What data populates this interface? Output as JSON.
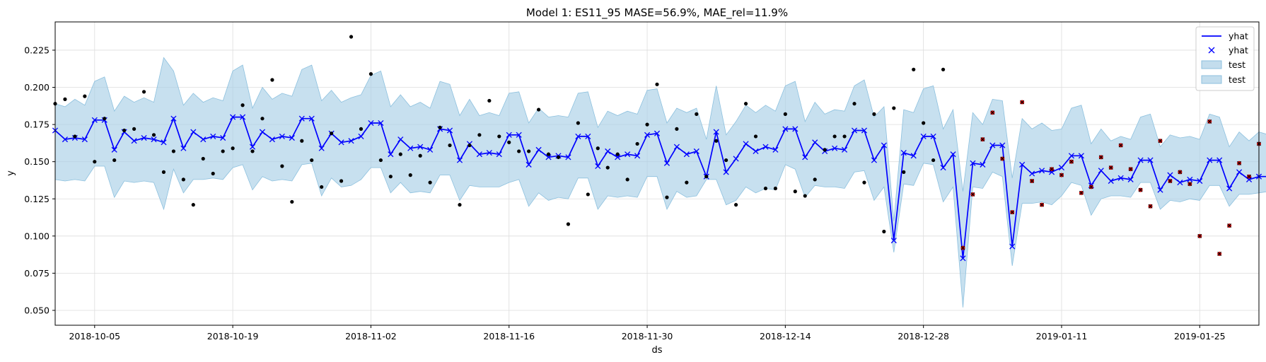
{
  "chart_data": {
    "type": "line",
    "title": "Model 1: ES11_95 MASE=56.9%, MAE_rel=11.9%",
    "xlabel": "ds",
    "ylabel": "y",
    "x_start": "2018-10-01",
    "x_end": "2019-01-31",
    "ylim": [
      0.04,
      0.244
    ],
    "grid": true,
    "legend_position": "top-right",
    "x_ticks": [
      "2018-10-05",
      "2018-10-19",
      "2018-11-02",
      "2018-11-16",
      "2018-11-30",
      "2018-12-14",
      "2018-12-28",
      "2019-01-11",
      "2019-01-25"
    ],
    "y_ticks": [
      0.05,
      0.075,
      0.1,
      0.125,
      0.15,
      0.175,
      0.2,
      0.225
    ],
    "y_tick_labels": [
      "0.050",
      "0.075",
      "0.100",
      "0.125",
      "0.150",
      "0.175",
      "0.200",
      "0.225"
    ],
    "legend": [
      {
        "label": "yhat",
        "kind": "line"
      },
      {
        "label": "yhat",
        "kind": "marker"
      },
      {
        "label": "test",
        "kind": "band"
      },
      {
        "label": "test",
        "kind": "band"
      }
    ],
    "colors": {
      "yhat": "#0000ff",
      "band_fill": "#a9cfe6",
      "band_edge": "#8cc0de",
      "actual": "#000000",
      "test": "#cc0000",
      "grid": "#dddddd"
    },
    "yhat": [
      0.171,
      0.165,
      0.166,
      0.165,
      0.178,
      0.178,
      0.158,
      0.17,
      0.164,
      0.166,
      0.165,
      0.163,
      0.179,
      0.159,
      0.17,
      0.165,
      0.167,
      0.166,
      0.18,
      0.18,
      0.16,
      0.17,
      0.165,
      0.167,
      0.166,
      0.179,
      0.179,
      0.159,
      0.169,
      0.163,
      0.164,
      0.167,
      0.176,
      0.176,
      0.155,
      0.165,
      0.159,
      0.16,
      0.158,
      0.172,
      0.171,
      0.151,
      0.162,
      0.155,
      0.156,
      0.155,
      0.168,
      0.168,
      0.148,
      0.158,
      0.153,
      0.154,
      0.153,
      0.167,
      0.167,
      0.147,
      0.157,
      0.153,
      0.155,
      0.154,
      0.168,
      0.169,
      0.149,
      0.16,
      0.155,
      0.157,
      0.14,
      0.17,
      0.143,
      0.152,
      0.162,
      0.157,
      0.16,
      0.158,
      0.172,
      0.172,
      0.153,
      0.163,
      0.157,
      0.159,
      0.158,
      0.171,
      0.171,
      0.151,
      0.161,
      0.097,
      0.156,
      0.154,
      0.167,
      0.167,
      0.146,
      0.155,
      0.085,
      0.149,
      0.148,
      0.161,
      0.161,
      0.093,
      0.148,
      0.142,
      0.144,
      0.143,
      0.146,
      0.154,
      0.154,
      0.134,
      0.144,
      0.137,
      0.139,
      0.138,
      0.151,
      0.151,
      0.131,
      0.141,
      0.136,
      0.138,
      0.137,
      0.151,
      0.151,
      0.132,
      0.143,
      0.138,
      0.14,
      0.14
    ],
    "yhat_lower": [
      0.138,
      0.137,
      0.138,
      0.137,
      0.147,
      0.147,
      0.126,
      0.137,
      0.136,
      0.137,
      0.136,
      0.118,
      0.145,
      0.129,
      0.138,
      0.138,
      0.139,
      0.138,
      0.146,
      0.148,
      0.131,
      0.14,
      0.137,
      0.138,
      0.137,
      0.148,
      0.149,
      0.127,
      0.139,
      0.133,
      0.134,
      0.138,
      0.146,
      0.146,
      0.129,
      0.136,
      0.129,
      0.13,
      0.129,
      0.141,
      0.141,
      0.124,
      0.134,
      0.133,
      0.133,
      0.133,
      0.136,
      0.138,
      0.12,
      0.129,
      0.124,
      0.126,
      0.125,
      0.139,
      0.139,
      0.118,
      0.127,
      0.126,
      0.127,
      0.126,
      0.14,
      0.14,
      0.118,
      0.13,
      0.126,
      0.127,
      0.138,
      0.138,
      0.121,
      0.124,
      0.133,
      0.129,
      0.132,
      0.131,
      0.148,
      0.145,
      0.126,
      0.134,
      0.133,
      0.133,
      0.132,
      0.143,
      0.144,
      0.124,
      0.133,
      0.089,
      0.135,
      0.134,
      0.149,
      0.148,
      0.123,
      0.133,
      0.052,
      0.133,
      0.132,
      0.143,
      0.14,
      0.08,
      0.122,
      0.122,
      0.123,
      0.121,
      0.127,
      0.136,
      0.134,
      0.114,
      0.125,
      0.127,
      0.127,
      0.126,
      0.136,
      0.136,
      0.118,
      0.124,
      0.123,
      0.125,
      0.124,
      0.134,
      0.134,
      0.12,
      0.128,
      0.128,
      0.129,
      0.13
    ],
    "yhat_upper": [
      0.189,
      0.187,
      0.192,
      0.188,
      0.204,
      0.207,
      0.184,
      0.194,
      0.19,
      0.193,
      0.19,
      0.22,
      0.211,
      0.188,
      0.196,
      0.19,
      0.193,
      0.191,
      0.211,
      0.215,
      0.186,
      0.2,
      0.192,
      0.196,
      0.194,
      0.212,
      0.215,
      0.191,
      0.198,
      0.19,
      0.193,
      0.195,
      0.208,
      0.211,
      0.187,
      0.195,
      0.187,
      0.19,
      0.186,
      0.204,
      0.202,
      0.181,
      0.192,
      0.181,
      0.183,
      0.181,
      0.196,
      0.197,
      0.176,
      0.186,
      0.18,
      0.181,
      0.18,
      0.196,
      0.197,
      0.173,
      0.184,
      0.181,
      0.184,
      0.182,
      0.198,
      0.199,
      0.176,
      0.186,
      0.183,
      0.186,
      0.165,
      0.201,
      0.168,
      0.177,
      0.188,
      0.183,
      0.188,
      0.184,
      0.201,
      0.204,
      0.177,
      0.19,
      0.182,
      0.185,
      0.184,
      0.201,
      0.205,
      0.18,
      0.187,
      0.11,
      0.185,
      0.183,
      0.199,
      0.201,
      0.172,
      0.185,
      0.13,
      0.183,
      0.175,
      0.192,
      0.191,
      0.139,
      0.179,
      0.172,
      0.176,
      0.171,
      0.172,
      0.186,
      0.188,
      0.162,
      0.172,
      0.164,
      0.167,
      0.165,
      0.18,
      0.182,
      0.16,
      0.168,
      0.166,
      0.167,
      0.165,
      0.182,
      0.18,
      0.16,
      0.17,
      0.164,
      0.17,
      0.168
    ],
    "actual": [
      {
        "x": "2018-10-01",
        "y": 0.189
      },
      {
        "x": "2018-10-02",
        "y": 0.192
      },
      {
        "x": "2018-10-03",
        "y": 0.167
      },
      {
        "x": "2018-10-04",
        "y": 0.194
      },
      {
        "x": "2018-10-05",
        "y": 0.15
      },
      {
        "x": "2018-10-06",
        "y": 0.179
      },
      {
        "x": "2018-10-07",
        "y": 0.151
      },
      {
        "x": "2018-10-08",
        "y": 0.171
      },
      {
        "x": "2018-10-09",
        "y": 0.172
      },
      {
        "x": "2018-10-10",
        "y": 0.197
      },
      {
        "x": "2018-10-11",
        "y": 0.168
      },
      {
        "x": "2018-10-12",
        "y": 0.143
      },
      {
        "x": "2018-10-13",
        "y": 0.157
      },
      {
        "x": "2018-10-14",
        "y": 0.138
      },
      {
        "x": "2018-10-15",
        "y": 0.121
      },
      {
        "x": "2018-10-16",
        "y": 0.152
      },
      {
        "x": "2018-10-17",
        "y": 0.142
      },
      {
        "x": "2018-10-18",
        "y": 0.157
      },
      {
        "x": "2018-10-19",
        "y": 0.159
      },
      {
        "x": "2018-10-20",
        "y": 0.188
      },
      {
        "x": "2018-10-21",
        "y": 0.157
      },
      {
        "x": "2018-10-22",
        "y": 0.179
      },
      {
        "x": "2018-10-23",
        "y": 0.205
      },
      {
        "x": "2018-10-24",
        "y": 0.147
      },
      {
        "x": "2018-10-25",
        "y": 0.123
      },
      {
        "x": "2018-10-26",
        "y": 0.164
      },
      {
        "x": "2018-10-27",
        "y": 0.151
      },
      {
        "x": "2018-10-28",
        "y": 0.133
      },
      {
        "x": "2018-10-29",
        "y": 0.169
      },
      {
        "x": "2018-10-30",
        "y": 0.137
      },
      {
        "x": "2018-10-31",
        "y": 0.234
      },
      {
        "x": "2018-11-01",
        "y": 0.172
      },
      {
        "x": "2018-11-02",
        "y": 0.209
      },
      {
        "x": "2018-11-03",
        "y": 0.151
      },
      {
        "x": "2018-11-04",
        "y": 0.14
      },
      {
        "x": "2018-11-05",
        "y": 0.155
      },
      {
        "x": "2018-11-06",
        "y": 0.141
      },
      {
        "x": "2018-11-07",
        "y": 0.154
      },
      {
        "x": "2018-11-08",
        "y": 0.136
      },
      {
        "x": "2018-11-09",
        "y": 0.173
      },
      {
        "x": "2018-11-10",
        "y": 0.161
      },
      {
        "x": "2018-11-11",
        "y": 0.121
      },
      {
        "x": "2018-11-12",
        "y": 0.161
      },
      {
        "x": "2018-11-13",
        "y": 0.168
      },
      {
        "x": "2018-11-14",
        "y": 0.191
      },
      {
        "x": "2018-11-15",
        "y": 0.167
      },
      {
        "x": "2018-11-16",
        "y": 0.163
      },
      {
        "x": "2018-11-17",
        "y": 0.157
      },
      {
        "x": "2018-11-18",
        "y": 0.157
      },
      {
        "x": "2018-11-19",
        "y": 0.185
      },
      {
        "x": "2018-11-20",
        "y": 0.155
      },
      {
        "x": "2018-11-21",
        "y": 0.153
      },
      {
        "x": "2018-11-22",
        "y": 0.108
      },
      {
        "x": "2018-11-23",
        "y": 0.176
      },
      {
        "x": "2018-11-24",
        "y": 0.128
      },
      {
        "x": "2018-11-25",
        "y": 0.159
      },
      {
        "x": "2018-11-26",
        "y": 0.146
      },
      {
        "x": "2018-11-27",
        "y": 0.155
      },
      {
        "x": "2018-11-28",
        "y": 0.138
      },
      {
        "x": "2018-11-29",
        "y": 0.162
      },
      {
        "x": "2018-11-30",
        "y": 0.175
      },
      {
        "x": "2018-12-01",
        "y": 0.202
      },
      {
        "x": "2018-12-02",
        "y": 0.126
      },
      {
        "x": "2018-12-03",
        "y": 0.172
      },
      {
        "x": "2018-12-04",
        "y": 0.136
      },
      {
        "x": "2018-12-05",
        "y": 0.182
      },
      {
        "x": "2018-12-06",
        "y": 0.14
      },
      {
        "x": "2018-12-07",
        "y": 0.164
      },
      {
        "x": "2018-12-08",
        "y": 0.151
      },
      {
        "x": "2018-12-09",
        "y": 0.121
      },
      {
        "x": "2018-12-10",
        "y": 0.189
      },
      {
        "x": "2018-12-11",
        "y": 0.167
      },
      {
        "x": "2018-12-12",
        "y": 0.132
      },
      {
        "x": "2018-12-13",
        "y": 0.132
      },
      {
        "x": "2018-12-14",
        "y": 0.182
      },
      {
        "x": "2018-12-15",
        "y": 0.13
      },
      {
        "x": "2018-12-16",
        "y": 0.127
      },
      {
        "x": "2018-12-17",
        "y": 0.138
      },
      {
        "x": "2018-12-18",
        "y": 0.158
      },
      {
        "x": "2018-12-19",
        "y": 0.167
      },
      {
        "x": "2018-12-20",
        "y": 0.167
      },
      {
        "x": "2018-12-21",
        "y": 0.189
      },
      {
        "x": "2018-12-22",
        "y": 0.136
      },
      {
        "x": "2018-12-23",
        "y": 0.182
      },
      {
        "x": "2018-12-24",
        "y": 0.103
      },
      {
        "x": "2018-12-25",
        "y": 0.186
      },
      {
        "x": "2018-12-26",
        "y": 0.143
      },
      {
        "x": "2018-12-27",
        "y": 0.212
      },
      {
        "x": "2018-12-28",
        "y": 0.176
      },
      {
        "x": "2018-12-29",
        "y": 0.151
      },
      {
        "x": "2018-12-30",
        "y": 0.212
      }
    ],
    "test_points": [
      {
        "x": "2019-01-01",
        "y": 0.092
      },
      {
        "x": "2019-01-02",
        "y": 0.128
      },
      {
        "x": "2019-01-03",
        "y": 0.165
      },
      {
        "x": "2019-01-04",
        "y": 0.183
      },
      {
        "x": "2019-01-05",
        "y": 0.152
      },
      {
        "x": "2019-01-06",
        "y": 0.116
      },
      {
        "x": "2019-01-07",
        "y": 0.19
      },
      {
        "x": "2019-01-08",
        "y": 0.137
      },
      {
        "x": "2019-01-09",
        "y": 0.121
      },
      {
        "x": "2019-01-10",
        "y": 0.145
      },
      {
        "x": "2019-01-11",
        "y": 0.141
      },
      {
        "x": "2019-01-12",
        "y": 0.15
      },
      {
        "x": "2019-01-13",
        "y": 0.129
      },
      {
        "x": "2019-01-14",
        "y": 0.133
      },
      {
        "x": "2019-01-15",
        "y": 0.153
      },
      {
        "x": "2019-01-16",
        "y": 0.146
      },
      {
        "x": "2019-01-17",
        "y": 0.161
      },
      {
        "x": "2019-01-18",
        "y": 0.145
      },
      {
        "x": "2019-01-19",
        "y": 0.131
      },
      {
        "x": "2019-01-20",
        "y": 0.12
      },
      {
        "x": "2019-01-21",
        "y": 0.164
      },
      {
        "x": "2019-01-22",
        "y": 0.137
      },
      {
        "x": "2019-01-23",
        "y": 0.143
      },
      {
        "x": "2019-01-24",
        "y": 0.135
      },
      {
        "x": "2019-01-25",
        "y": 0.1
      },
      {
        "x": "2019-01-26",
        "y": 0.177
      },
      {
        "x": "2019-01-27",
        "y": 0.088
      },
      {
        "x": "2019-01-28",
        "y": 0.107
      },
      {
        "x": "2019-01-29",
        "y": 0.149
      },
      {
        "x": "2019-01-30",
        "y": 0.14
      },
      {
        "x": "2019-01-31",
        "y": 0.162
      }
    ]
  }
}
